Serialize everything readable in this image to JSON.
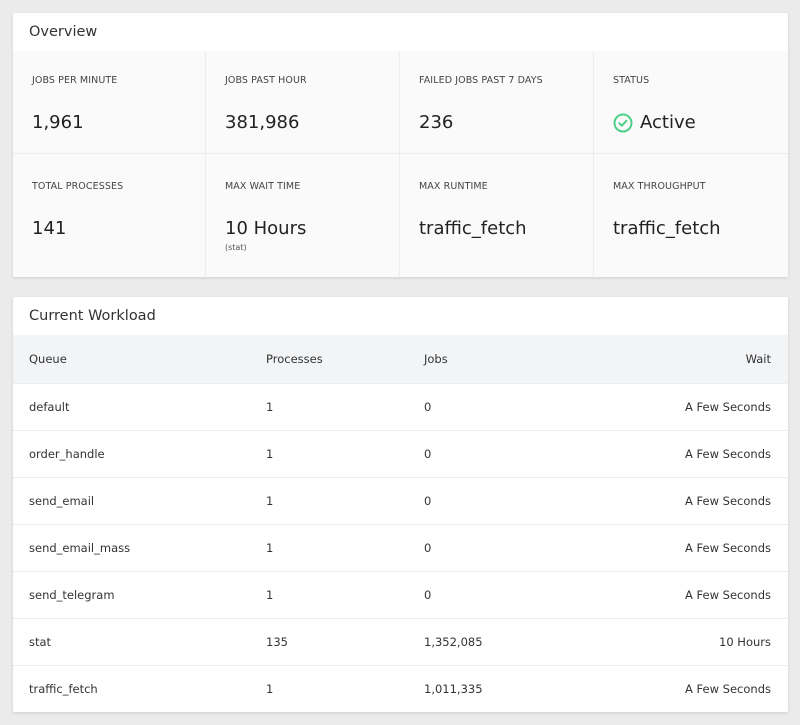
{
  "overview": {
    "title": "Overview",
    "stats": [
      {
        "label": "Jobs Per Minute",
        "value": "1,961"
      },
      {
        "label": "Jobs Past Hour",
        "value": "381,986"
      },
      {
        "label": "Failed Jobs Past 7 Days",
        "value": "236"
      },
      {
        "label": "Status",
        "value": "Active",
        "icon": "check-circle-icon",
        "color": "#4ccf87"
      },
      {
        "label": "Total Processes",
        "value": "141"
      },
      {
        "label": "Max Wait Time",
        "value": "10 Hours",
        "sub": "(stat)"
      },
      {
        "label": "Max Runtime",
        "value": "traffic_fetch"
      },
      {
        "label": "Max Throughput",
        "value": "traffic_fetch"
      }
    ]
  },
  "workload": {
    "title": "Current Workload",
    "columns": [
      "Queue",
      "Processes",
      "Jobs",
      "Wait"
    ],
    "rows": [
      [
        "default",
        "1",
        "0",
        "A Few Seconds"
      ],
      [
        "order_handle",
        "1",
        "0",
        "A Few Seconds"
      ],
      [
        "send_email",
        "1",
        "0",
        "A Few Seconds"
      ],
      [
        "send_email_mass",
        "1",
        "0",
        "A Few Seconds"
      ],
      [
        "send_telegram",
        "1",
        "0",
        "A Few Seconds"
      ],
      [
        "stat",
        "135",
        "1,352,085",
        "10 Hours"
      ],
      [
        "traffic_fetch",
        "1",
        "1,011,335",
        "A Few Seconds"
      ]
    ]
  }
}
